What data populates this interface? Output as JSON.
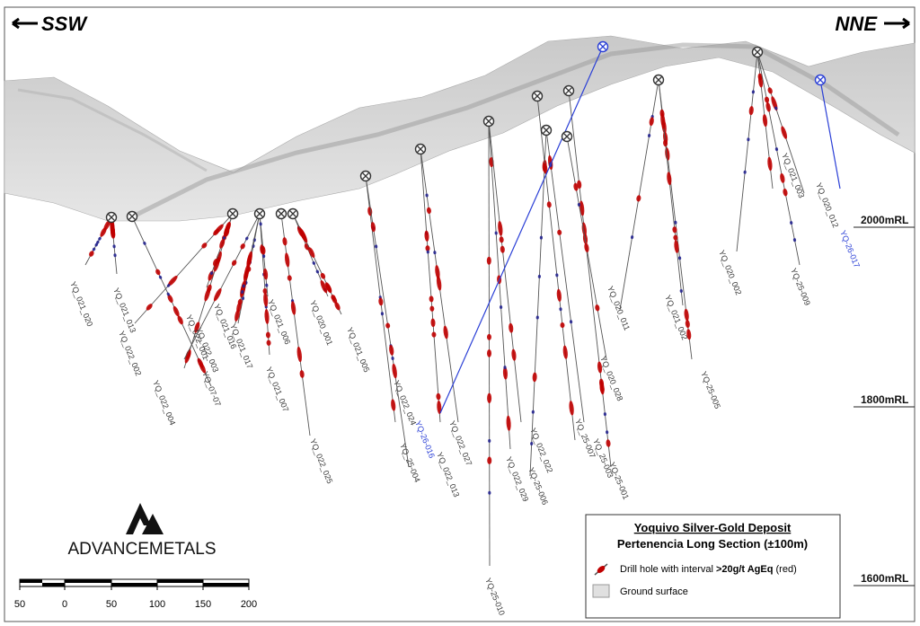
{
  "header": {
    "left": "SSW",
    "right": "NNE"
  },
  "elevations": [
    "2000mRL",
    "1800mRL",
    "1600mRL"
  ],
  "holes": [
    "YQ_021_020",
    "YQ_021_013",
    "YQ_022_002",
    "YQ_022_004",
    "YQ_022_001",
    "YQ_022_003",
    "YQ_021_016",
    "YQ_07-07",
    "YQ_021_017",
    "YQ_021_007",
    "YQ_021_006",
    "YQ_022_025",
    "YQ_020_001",
    "YQ_021_005",
    "YQ_022_024",
    "YQ_25-004",
    "YQ_022_013",
    "YQ_022_027",
    "YQ-25-010",
    "YQ_022_029",
    "YQ_022_022",
    "YQ-25-006",
    "YQ_25-007",
    "YQ_25-003",
    "YQ-25-001",
    "YQ_020_028",
    "YQ_020_011",
    "YQ-25-005",
    "YQ_021_002",
    "YQ_021_003",
    "YQ_020_012",
    "YQ_020_002",
    "YQ-25-009",
    "YQ-26-016",
    "YQ-26-017"
  ],
  "logo": "ADVANCEMETALS",
  "scale": [
    "50",
    "0",
    "50",
    "100",
    "150",
    "200"
  ],
  "legend": {
    "title": "Yoquivo Silver-Gold Deposit",
    "subtitle": "Pertenencia Long Section (±100m)",
    "drill_prefix": "Drill hole with interval ",
    "drill_bold": ">20g/t AgEq",
    "drill_suffix": " (red)",
    "ground": "Ground surface"
  }
}
